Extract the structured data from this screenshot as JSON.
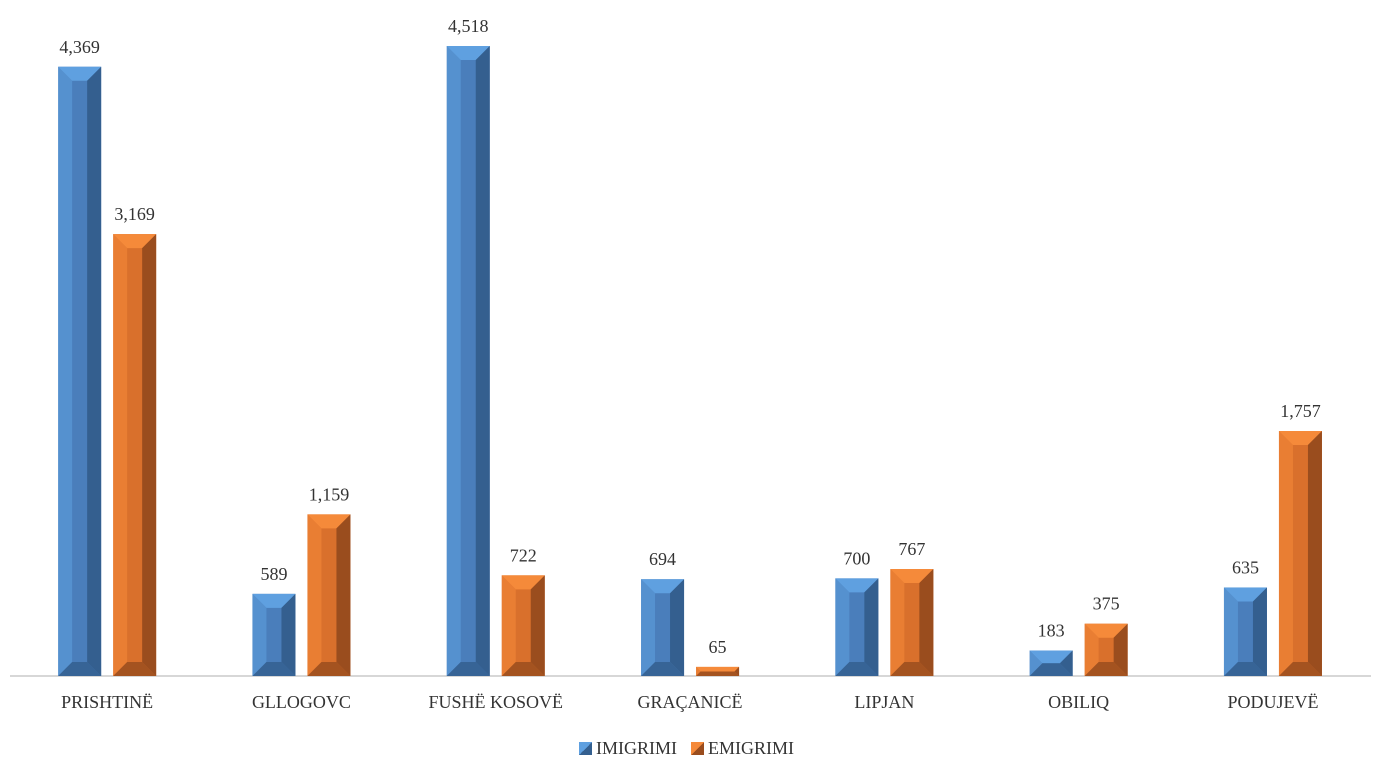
{
  "chart_data": {
    "type": "bar",
    "title": "",
    "xlabel": "",
    "ylabel": "",
    "ylim": [
      0,
      5000
    ],
    "grid": false,
    "legend_position": "bottom",
    "categories": [
      "PRISHTINË",
      "GLLOGOVC",
      "FUSHË KOSOVË",
      "GRAÇANICË",
      "LIPJAN",
      "OBILIQ",
      "PODUJEVË"
    ],
    "series": [
      {
        "name": "IMIGRIMI",
        "values": [
          4369,
          589,
          4518,
          694,
          700,
          183,
          635
        ],
        "labels": [
          "4,369",
          "589",
          "4,518",
          "694",
          "700",
          "183",
          "635"
        ]
      },
      {
        "name": "EMIGRIMI",
        "values": [
          3169,
          1159,
          722,
          65,
          767,
          375,
          1757
        ],
        "labels": [
          "3,169",
          "1,159",
          "722",
          "65",
          "767",
          "375",
          "1,757"
        ]
      }
    ]
  },
  "colors": {
    "IMIGRIMI": {
      "front": "#4a7ebb",
      "top": "#5fa0e0",
      "side": "#345f8f"
    },
    "EMIGRIMI": {
      "front": "#d9702c",
      "top": "#f58a3a",
      "side": "#9a4d1e"
    },
    "axis": "#bfbfbf",
    "text": "#333333"
  }
}
